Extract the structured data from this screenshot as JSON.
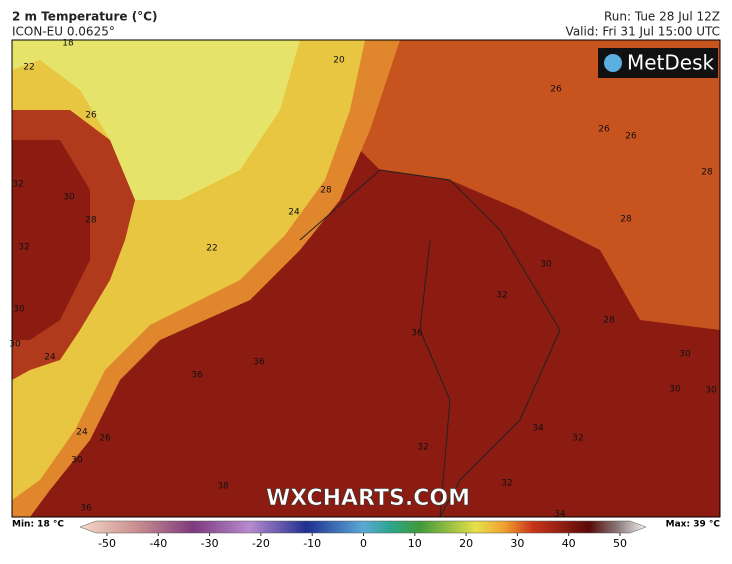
{
  "header": {
    "title": "2 m Temperature (°C)",
    "model": "ICON-EU 0.0625°",
    "run": "Run: Tue 28 Jul 12Z",
    "valid": "Valid: Fri 31 Jul 15:00 UTC"
  },
  "logo": "MetDesk",
  "watermark": "WXCHARTS.COM",
  "contour_labels": [
    18,
    22,
    20,
    26,
    32,
    30,
    28,
    32,
    22,
    24,
    28,
    30,
    30,
    24,
    36,
    36,
    36,
    32,
    30,
    28,
    28,
    28,
    26,
    26,
    26,
    30,
    30,
    30,
    32,
    34,
    32,
    24,
    26,
    30,
    38,
    32,
    36,
    34
  ],
  "colorbar": {
    "min_label": "Min: 18 °C",
    "max_label": "Max: 39 °C",
    "range": [
      -50,
      50
    ],
    "ticks": [
      -50,
      -40,
      -30,
      -20,
      -10,
      0,
      10,
      20,
      30,
      40,
      50
    ]
  }
}
